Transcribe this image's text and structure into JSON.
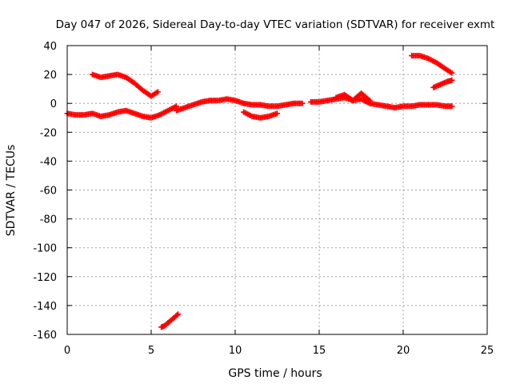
{
  "chart_data": {
    "type": "scatter",
    "title": "Day 047 of 2026, Sidereal Day-to-day VTEC variation (SDTVAR) for receiver exmt",
    "xlabel": "GPS time / hours",
    "ylabel": "SDTVAR / TECUs",
    "xlim": [
      0,
      25
    ],
    "ylim": [
      -160,
      40
    ],
    "x_ticks": [
      "0",
      "5",
      "10",
      "15",
      "20",
      "25"
    ],
    "y_ticks": [
      "40",
      "20",
      "0",
      "-20",
      "-40",
      "-60",
      "-80",
      "-100",
      "-120",
      "-140",
      "-160"
    ],
    "grid": true,
    "marker": "plus",
    "series_color": "#ff0000",
    "series": [
      {
        "name": "track-1",
        "x": [
          0.0,
          0.5,
          1.0,
          1.5,
          2.0,
          2.5,
          3.0,
          3.5,
          4.0,
          4.5,
          5.0,
          5.5,
          6.0,
          6.5
        ],
        "y": [
          -7,
          -8,
          -8,
          -7,
          -9,
          -8,
          -6,
          -5,
          -7,
          -9,
          -10,
          -8,
          -5,
          -2
        ]
      },
      {
        "name": "track-2",
        "x": [
          1.5,
          2.0,
          2.5,
          3.0,
          3.5,
          4.0,
          4.5,
          5.0,
          5.4
        ],
        "y": [
          20,
          18,
          19,
          20,
          18,
          14,
          9,
          5,
          8
        ]
      },
      {
        "name": "track-3",
        "x": [
          6.5,
          7.0,
          7.5,
          8.0,
          8.5,
          9.0,
          9.5,
          10.0,
          10.5,
          11.0,
          11.5,
          12.0,
          12.5,
          13.0,
          13.5,
          14.0
        ],
        "y": [
          -5,
          -3,
          -1,
          1,
          2,
          2,
          3,
          2,
          0,
          -1,
          -1,
          -2,
          -2,
          -1,
          0,
          0
        ]
      },
      {
        "name": "track-4",
        "x": [
          10.5,
          11.0,
          11.5,
          12.0,
          12.5
        ],
        "y": [
          -6,
          -9,
          -10,
          -9,
          -7
        ]
      },
      {
        "name": "track-5",
        "x": [
          14.5,
          15.0,
          15.5,
          16.0,
          16.5,
          17.0,
          17.5,
          18.0,
          18.5,
          19.0,
          19.5,
          20.0,
          20.5,
          21.0,
          21.5,
          22.0,
          22.5,
          22.9
        ],
        "y": [
          1,
          1,
          2,
          3,
          4,
          2,
          3,
          0,
          -1,
          -2,
          -3,
          -2,
          -2,
          -1,
          -1,
          -1,
          -2,
          -2
        ]
      },
      {
        "name": "track-6",
        "x": [
          16.0,
          16.5,
          17.0,
          17.5,
          18.0
        ],
        "y": [
          4,
          6,
          2,
          7,
          2
        ]
      },
      {
        "name": "track-7",
        "x": [
          20.5,
          21.0,
          21.5,
          22.0,
          22.5,
          22.9
        ],
        "y": [
          33,
          33,
          31,
          28,
          24,
          21
        ]
      },
      {
        "name": "track-8",
        "x": [
          21.8,
          22.2,
          22.6,
          22.9
        ],
        "y": [
          11,
          13,
          15,
          16
        ]
      },
      {
        "name": "track-9",
        "x": [
          5.6,
          5.8,
          6.0,
          6.2,
          6.4,
          6.6
        ],
        "y": [
          -155,
          -154,
          -152,
          -150,
          -148,
          -146
        ]
      }
    ]
  }
}
